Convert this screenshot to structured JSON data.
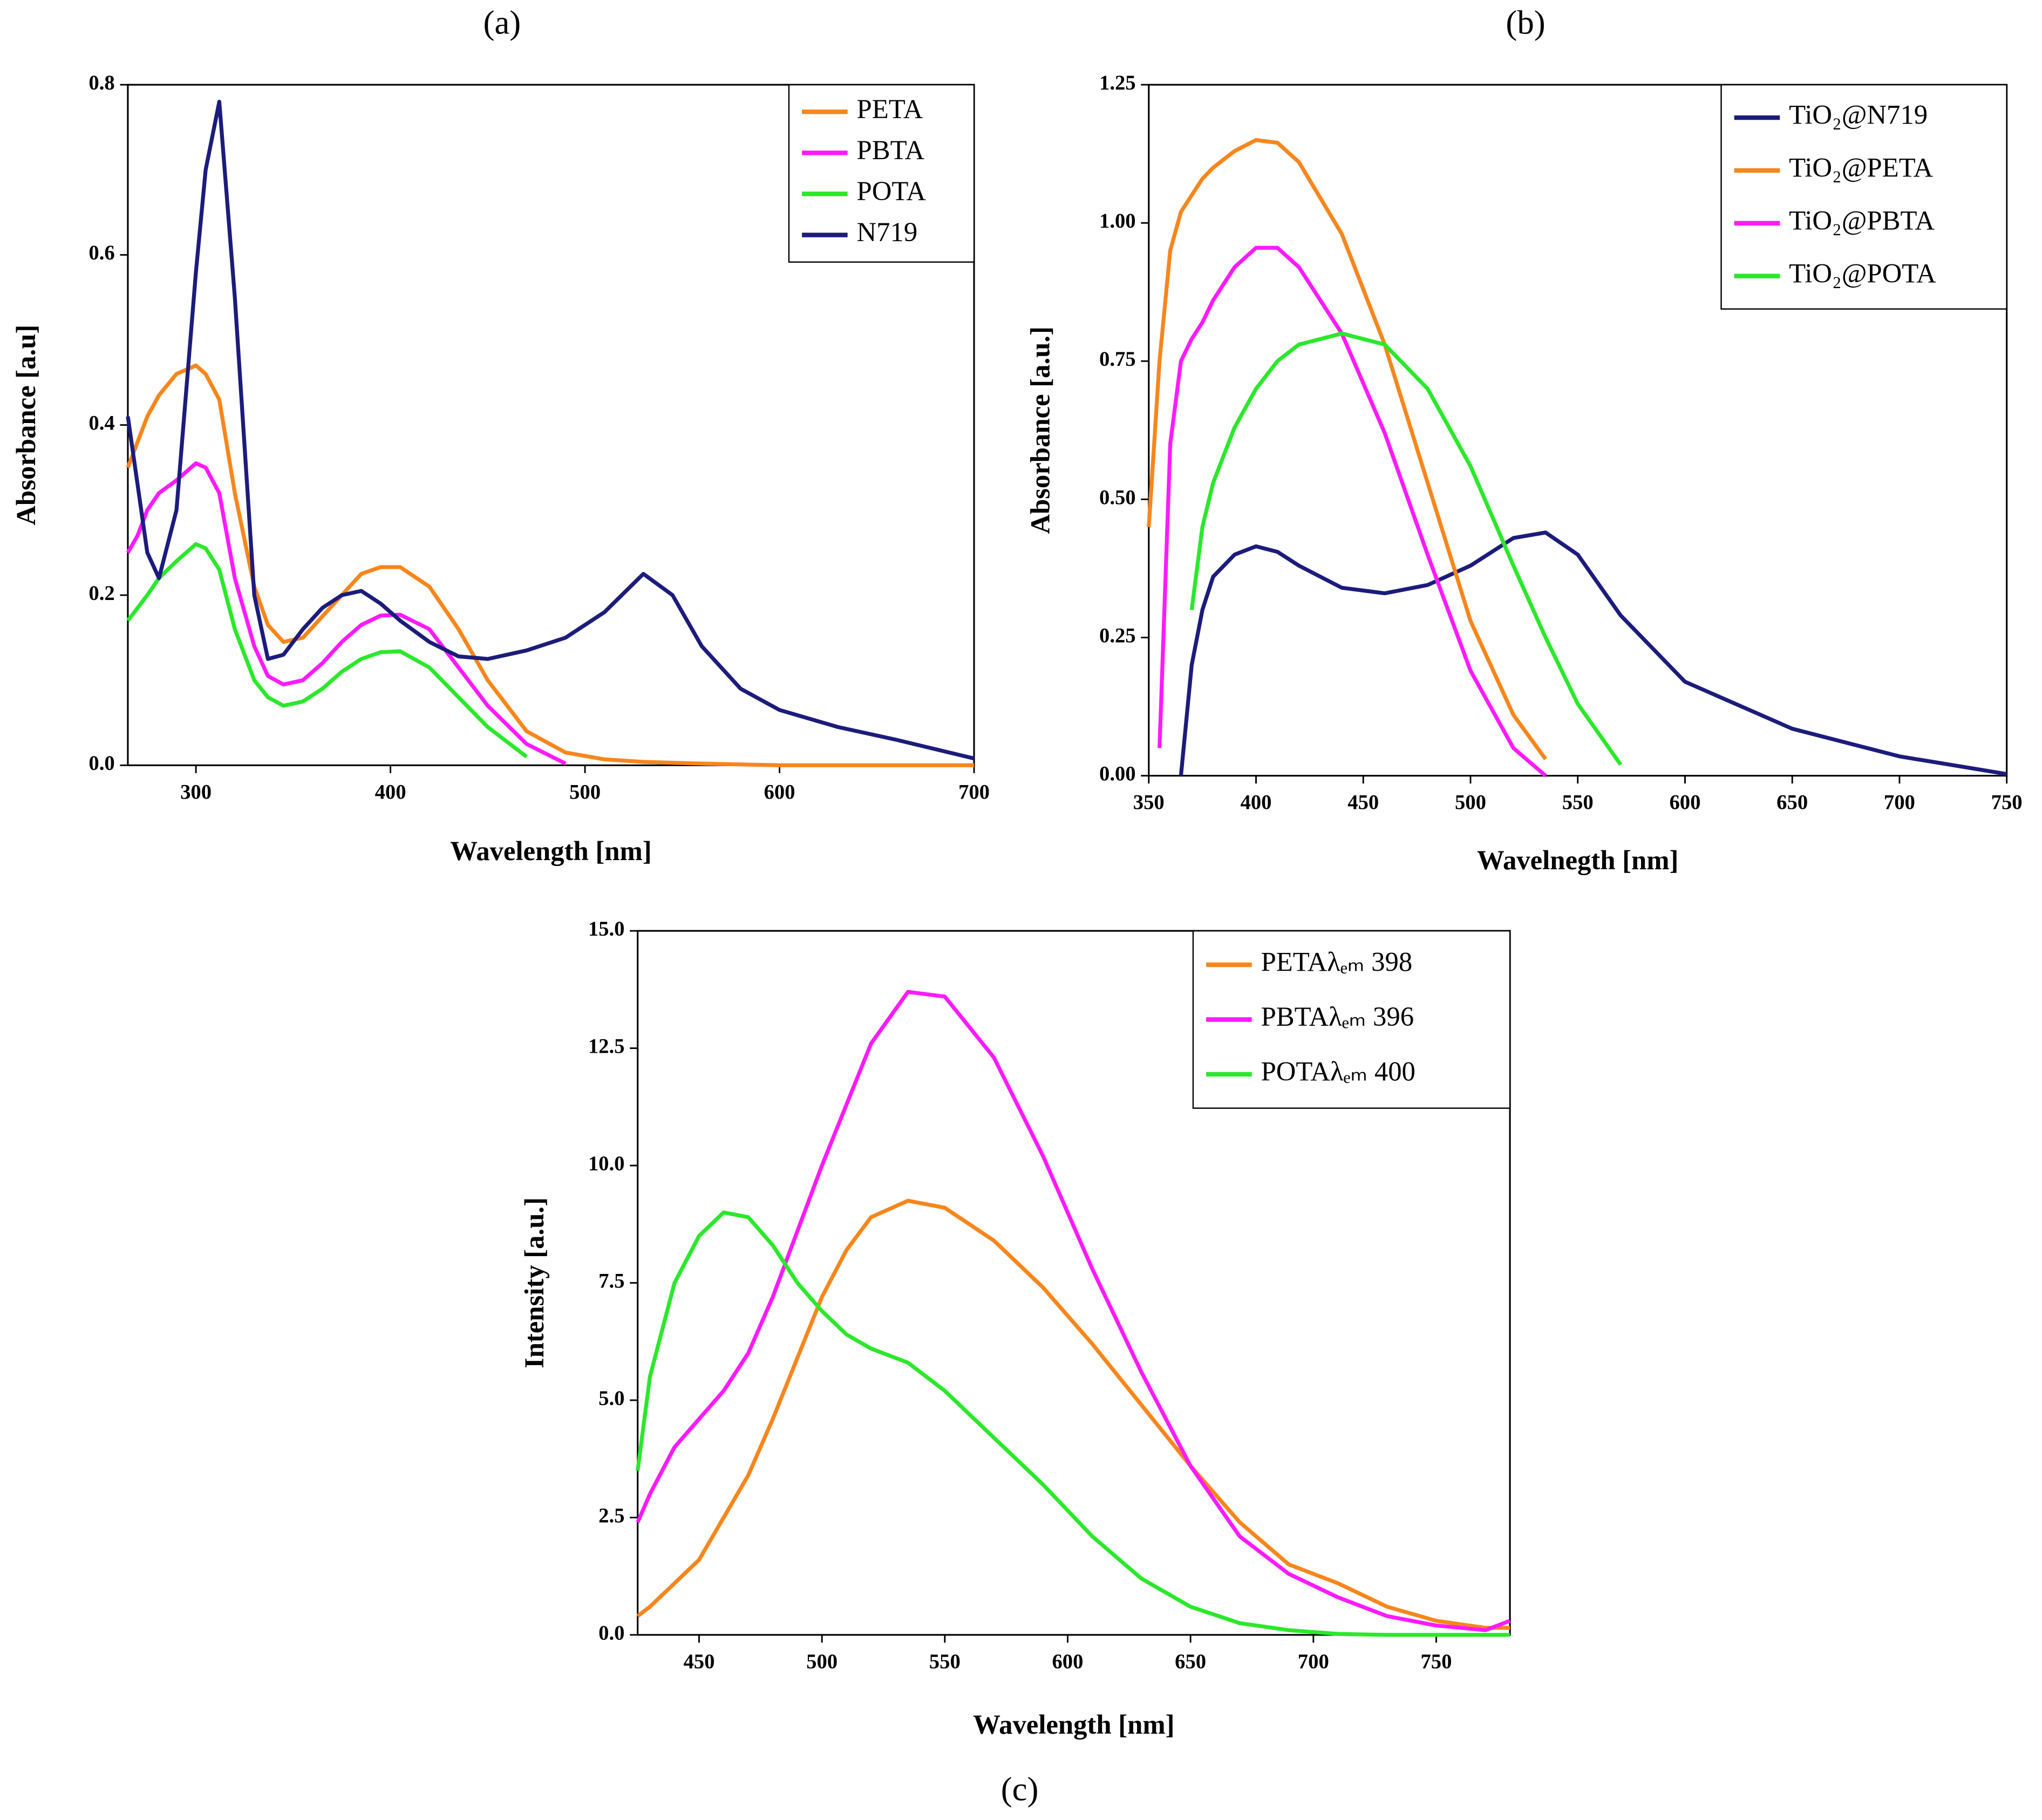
{
  "chart_data": [
    {
      "type": "line",
      "title": "(a)",
      "xlabel": "Wavelength [nm]",
      "ylabel": "Absorbance [a.u]",
      "xlim": [
        265,
        700
      ],
      "ylim": [
        0,
        0.8
      ],
      "xticks": [
        300,
        400,
        500,
        600,
        700
      ],
      "yticks": [
        {
          "value": 0,
          "label": "0.0"
        },
        0.2,
        0.4,
        0.6,
        0.8
      ],
      "legend": "upper right",
      "grid": false,
      "x": [
        265,
        270,
        275,
        281,
        290,
        300,
        305,
        312,
        320,
        330,
        337,
        345,
        355,
        365,
        375,
        385,
        395,
        405,
        420,
        435,
        450,
        470,
        490,
        510,
        530,
        545,
        560,
        580,
        600,
        630,
        660,
        700
      ],
      "series": [
        {
          "name": "PETA",
          "color": "#f7861c",
          "values": [
            0.35,
            0.38,
            0.41,
            0.435,
            0.46,
            0.47,
            0.46,
            0.43,
            0.32,
            0.21,
            0.165,
            0.145,
            0.15,
            0.175,
            0.2,
            0.225,
            0.233,
            0.233,
            0.21,
            0.16,
            0.1,
            0.04,
            0.015,
            0.007,
            0.004,
            0.003,
            0.002,
            0.001,
            0,
            0,
            0,
            0
          ]
        },
        {
          "name": "PBTA",
          "color": "#ff1aff",
          "values": [
            0.25,
            0.27,
            0.3,
            0.32,
            0.335,
            0.355,
            0.35,
            0.32,
            0.22,
            0.14,
            0.105,
            0.095,
            0.1,
            0.12,
            0.145,
            0.165,
            0.176,
            0.177,
            0.16,
            0.115,
            0.07,
            0.025,
            0.002,
            null,
            null,
            null,
            null,
            null,
            null,
            null,
            null,
            null
          ]
        },
        {
          "name": "POTA",
          "color": "#2be82b",
          "values": [
            0.17,
            0.185,
            0.2,
            0.22,
            0.24,
            0.26,
            0.255,
            0.23,
            0.16,
            0.1,
            0.08,
            0.07,
            0.075,
            0.09,
            0.11,
            0.125,
            0.133,
            0.134,
            0.115,
            0.08,
            0.045,
            0.01,
            null,
            null,
            null,
            null,
            null,
            null,
            null,
            null,
            null,
            null
          ]
        },
        {
          "name": "N719",
          "color": "#1c1c7c",
          "values": [
            0.41,
            0.33,
            0.25,
            0.22,
            0.3,
            0.58,
            0.7,
            0.78,
            0.55,
            0.2,
            0.125,
            0.13,
            0.16,
            0.185,
            0.2,
            0.205,
            0.19,
            0.17,
            0.145,
            0.128,
            0.125,
            0.135,
            0.15,
            0.18,
            0.225,
            0.2,
            0.14,
            0.09,
            0.065,
            0.045,
            0.03,
            0.008
          ]
        }
      ]
    },
    {
      "type": "line",
      "title": "(b)",
      "xlabel": "Wavelnegth [nm]",
      "ylabel": "Absorbance [a.u.]",
      "xlim": [
        350,
        750
      ],
      "ylim": [
        0,
        1.25
      ],
      "xticks": [
        350,
        400,
        450,
        500,
        550,
        600,
        650,
        700,
        750
      ],
      "yticks": [
        {
          "value": 0,
          "label": "0.00"
        },
        {
          "value": 0.25,
          "label": "0.25"
        },
        {
          "value": 0.5,
          "label": "0.50"
        },
        {
          "value": 0.75,
          "label": "0.75"
        },
        {
          "value": 1,
          "label": "1.00"
        },
        {
          "value": 1.25,
          "label": "1.25"
        }
      ],
      "legend": "upper right",
      "grid": false,
      "x": [
        350,
        355,
        360,
        365,
        370,
        375,
        380,
        390,
        400,
        410,
        420,
        440,
        460,
        480,
        500,
        520,
        535,
        550,
        570,
        600,
        650,
        700,
        750
      ],
      "series": [
        {
          "name": "TiO₂@N719",
          "color": "#1c1c7c",
          "values": [
            null,
            null,
            null,
            0,
            0.2,
            0.3,
            0.36,
            0.4,
            0.415,
            0.405,
            0.38,
            0.34,
            0.33,
            0.345,
            0.38,
            0.43,
            0.44,
            0.4,
            0.29,
            0.17,
            0.085,
            0.035,
            0.003
          ]
        },
        {
          "name": "TiO₂@PETA",
          "color": "#f7861c",
          "values": [
            0.45,
            0.75,
            0.95,
            1.02,
            1.05,
            1.08,
            1.1,
            1.13,
            1.15,
            1.145,
            1.11,
            0.98,
            0.78,
            0.53,
            0.28,
            0.11,
            0.03,
            null,
            null,
            null,
            null,
            null,
            null
          ]
        },
        {
          "name": "TiO₂@PBTA",
          "color": "#ff1aff",
          "values": [
            null,
            0.05,
            0.6,
            0.75,
            0.79,
            0.82,
            0.86,
            0.92,
            0.955,
            0.955,
            0.92,
            0.8,
            0.62,
            0.4,
            0.19,
            0.05,
            0,
            null,
            null,
            null,
            null,
            null,
            null
          ]
        },
        {
          "name": "TiO₂@POTA",
          "color": "#2be82b",
          "values": [
            null,
            null,
            null,
            null,
            0.3,
            0.45,
            0.53,
            0.63,
            0.7,
            0.75,
            0.78,
            0.8,
            0.78,
            0.7,
            0.56,
            0.38,
            0.25,
            0.13,
            0.02,
            null,
            null,
            null,
            null
          ]
        }
      ]
    },
    {
      "type": "line",
      "title": "(c)",
      "xlabel": "Wavelength [nm]",
      "ylabel": "Intensity [a.u.]",
      "xlim": [
        425,
        780
      ],
      "ylim": [
        0,
        15
      ],
      "xticks": [
        450,
        500,
        550,
        600,
        650,
        700,
        750
      ],
      "yticks": [
        {
          "value": 0,
          "label": "0.0"
        },
        2.5,
        {
          "value": 5,
          "label": "5.0"
        },
        7.5,
        {
          "value": 10,
          "label": "10.0"
        },
        12.5,
        {
          "value": 15,
          "label": "15.0"
        }
      ],
      "legend": "upper right",
      "grid": false,
      "x": [
        425,
        430,
        440,
        450,
        460,
        470,
        480,
        490,
        500,
        510,
        520,
        535,
        550,
        570,
        590,
        610,
        630,
        650,
        670,
        690,
        710,
        730,
        750,
        770,
        780
      ],
      "series": [
        {
          "name": "PETAλₑₘ 398",
          "color": "#f7861c",
          "values": [
            0.4,
            0.6,
            1.1,
            1.6,
            2.5,
            3.4,
            4.6,
            5.9,
            7.2,
            8.2,
            8.9,
            9.25,
            9.1,
            8.4,
            7.4,
            6.2,
            4.9,
            3.6,
            2.4,
            1.5,
            1.1,
            0.6,
            0.3,
            0.15,
            0.15
          ]
        },
        {
          "name": "PBTAλₑₘ 396",
          "color": "#ff1aff",
          "values": [
            2.4,
            3,
            4,
            4.6,
            5.2,
            6,
            7.2,
            8.6,
            10,
            11.3,
            12.6,
            13.7,
            13.6,
            12.3,
            10.2,
            7.8,
            5.6,
            3.6,
            2.1,
            1.3,
            0.8,
            0.4,
            0.2,
            0.1,
            0.3
          ]
        },
        {
          "name": "POTAλₑₘ 400",
          "color": "#2be82b",
          "values": [
            3.5,
            5.5,
            7.5,
            8.5,
            9,
            8.9,
            8.3,
            7.5,
            6.9,
            6.4,
            6.1,
            5.8,
            5.2,
            4.2,
            3.2,
            2.1,
            1.2,
            0.6,
            0.25,
            0.1,
            0.02,
            0,
            0,
            0,
            0
          ]
        }
      ]
    }
  ]
}
